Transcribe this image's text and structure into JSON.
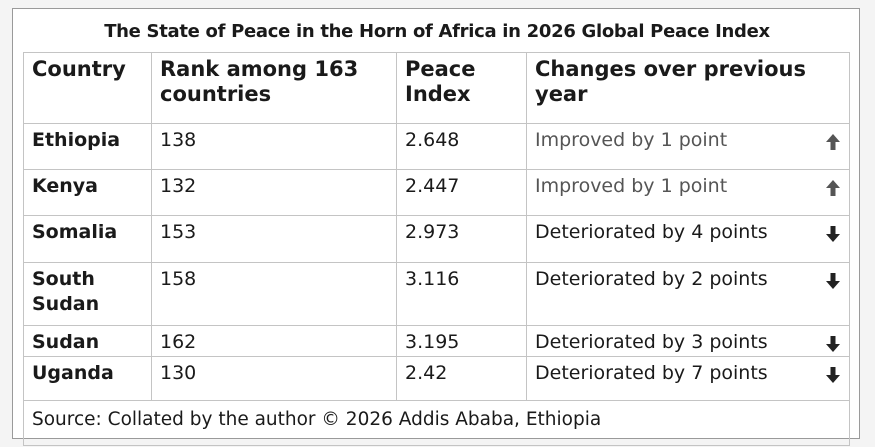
{
  "title": "The State of Peace in the Horn of Africa in 2026 Global Peace Index",
  "table": {
    "header": [
      "Country",
      "Rank among 163 countries",
      "Peace Index",
      "Changes over previous year"
    ],
    "rows": [
      [
        "Ethiopia",
        138,
        2.648,
        "Improved by 1 point"
      ],
      [
        "Kenya",
        132,
        2.447,
        "Improved by 1 point"
      ],
      [
        "Somalia",
        153,
        2.973,
        "Deteriorated by 4 points"
      ],
      [
        "South Sudan",
        158,
        3.116,
        "Deteriorated by 2 points"
      ],
      [
        "Sudan",
        162,
        3.195,
        "Deteriorated by 3 points"
      ],
      [
        "Uganda",
        130,
        2.42,
        "Deteriorated by 7 points"
      ]
    ]
  },
  "source": "Source: Collated by the author © 2026 Addis Ababa, Ethiopia"
}
